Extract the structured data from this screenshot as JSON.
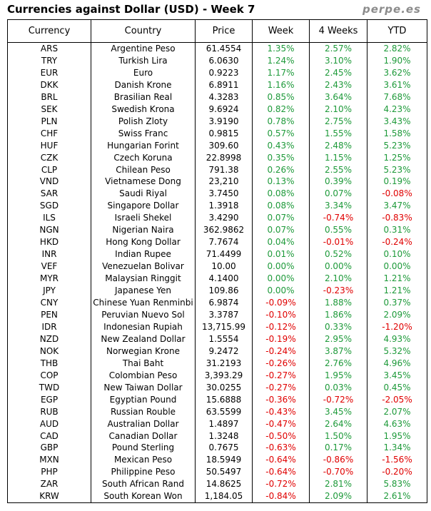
{
  "title": "Currencies against Dollar (USD) - Week 7",
  "brand": "perpe.es",
  "colors": {
    "positive": "#1e9a3a",
    "negative": "#e00000"
  },
  "columns": [
    "Currency",
    "Country",
    "Price",
    "Week",
    "4 Weeks",
    "YTD"
  ],
  "rows": [
    [
      "ARS",
      "Argentine Peso",
      "61.4554",
      "1.35%",
      "2.57%",
      "2.82%"
    ],
    [
      "TRY",
      "Turkish Lira",
      "6.0630",
      "1.24%",
      "3.10%",
      "1.90%"
    ],
    [
      "EUR",
      "Euro",
      "0.9223",
      "1.17%",
      "2.45%",
      "3.62%"
    ],
    [
      "DKK",
      "Danish Krone",
      "6.8911",
      "1.16%",
      "2.43%",
      "3.61%"
    ],
    [
      "BRL",
      "Brasilian Real",
      "4.3283",
      "0.85%",
      "3.64%",
      "7.68%"
    ],
    [
      "SEK",
      "Swedish Krona",
      "9.6924",
      "0.82%",
      "2.10%",
      "4.23%"
    ],
    [
      "PLN",
      "Polish Zloty",
      "3.9190",
      "0.78%",
      "2.75%",
      "3.43%"
    ],
    [
      "CHF",
      "Swiss Franc",
      "0.9815",
      "0.57%",
      "1.55%",
      "1.58%"
    ],
    [
      "HUF",
      "Hungarian Forint",
      "309.60",
      "0.43%",
      "2.48%",
      "5.23%"
    ],
    [
      "CZK",
      "Czech Koruna",
      "22.8998",
      "0.35%",
      "1.15%",
      "1.25%"
    ],
    [
      "CLP",
      "Chilean Peso",
      "791.38",
      "0.26%",
      "2.55%",
      "5.23%"
    ],
    [
      "VND",
      "Vietnamese Dong",
      "23,210",
      "0.13%",
      "0.39%",
      "0.19%"
    ],
    [
      "SAR",
      "Saudi Riyal",
      "3.7450",
      "0.08%",
      "0.07%",
      "-0.08%"
    ],
    [
      "SGD",
      "Singapore Dollar",
      "1.3918",
      "0.08%",
      "3.34%",
      "3.47%"
    ],
    [
      "ILS",
      "Israeli Shekel",
      "3.4290",
      "0.07%",
      "-0.74%",
      "-0.83%"
    ],
    [
      "NGN",
      "Nigerian Naira",
      "362.9862",
      "0.07%",
      "0.55%",
      "0.31%"
    ],
    [
      "HKD",
      "Hong Kong Dollar",
      "7.7674",
      "0.04%",
      "-0.01%",
      "-0.24%"
    ],
    [
      "INR",
      "Indian Rupee",
      "71.4499",
      "0.01%",
      "0.52%",
      "0.10%"
    ],
    [
      "VEF",
      "Venezuelan Bolivar",
      "10.00",
      "0.00%",
      "0.00%",
      "0.00%"
    ],
    [
      "MYR",
      "Malaysian Ringgit",
      "4.1400",
      "0.00%",
      "2.10%",
      "1.21%"
    ],
    [
      "JPY",
      "Japanese Yen",
      "109.86",
      "0.00%",
      "-0.23%",
      "1.21%"
    ],
    [
      "CNY",
      "Chinese Yuan Renminbi",
      "6.9874",
      "-0.09%",
      "1.88%",
      "0.37%"
    ],
    [
      "PEN",
      "Peruvian Nuevo Sol",
      "3.3787",
      "-0.10%",
      "1.86%",
      "2.09%"
    ],
    [
      "IDR",
      "Indonesian Rupiah",
      "13,715.99",
      "-0.12%",
      "0.33%",
      "-1.20%"
    ],
    [
      "NZD",
      "New Zealand Dollar",
      "1.5554",
      "-0.19%",
      "2.95%",
      "4.93%"
    ],
    [
      "NOK",
      "Norwegian Krone",
      "9.2472",
      "-0.24%",
      "3.87%",
      "5.32%"
    ],
    [
      "THB",
      "Thai Baht",
      "31.2193",
      "-0.26%",
      "2.76%",
      "4.96%"
    ],
    [
      "COP",
      "Colombian Peso",
      "3,393.29",
      "-0.27%",
      "1.95%",
      "3.45%"
    ],
    [
      "TWD",
      "New Taiwan Dollar",
      "30.0255",
      "-0.27%",
      "0.03%",
      "0.45%"
    ],
    [
      "EGP",
      "Egyptian Pound",
      "15.6888",
      "-0.36%",
      "-0.72%",
      "-2.05%"
    ],
    [
      "RUB",
      "Russian Rouble",
      "63.5599",
      "-0.43%",
      "3.45%",
      "2.07%"
    ],
    [
      "AUD",
      "Australian Dollar",
      "1.4897",
      "-0.47%",
      "2.64%",
      "4.63%"
    ],
    [
      "CAD",
      "Canadian Dollar",
      "1.3248",
      "-0.50%",
      "1.50%",
      "1.95%"
    ],
    [
      "GBP",
      "Pound Sterling",
      "0.7675",
      "-0.63%",
      "0.17%",
      "1.34%"
    ],
    [
      "MXN",
      "Mexican Peso",
      "18.5949",
      "-0.64%",
      "-0.86%",
      "-1.56%"
    ],
    [
      "PHP",
      "Philippine Peso",
      "50.5497",
      "-0.64%",
      "-0.70%",
      "-0.20%"
    ],
    [
      "ZAR",
      "South African Rand",
      "14.8625",
      "-0.72%",
      "2.81%",
      "5.83%"
    ],
    [
      "KRW",
      "South Korean Won",
      "1,184.05",
      "-0.84%",
      "2.09%",
      "2.61%"
    ]
  ]
}
